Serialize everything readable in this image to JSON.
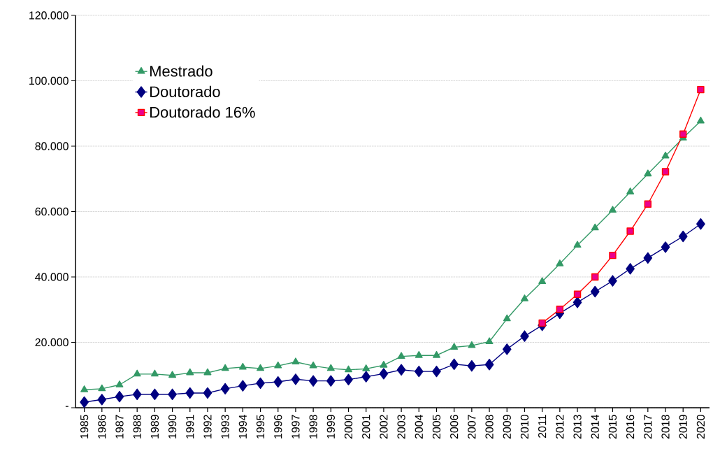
{
  "chart_data": {
    "type": "line",
    "categories": [
      "1985",
      "1986",
      "1987",
      "1988",
      "1989",
      "1990",
      "1991",
      "1992",
      "1993",
      "1994",
      "1995",
      "1996",
      "1997",
      "1998",
      "1999",
      "2000",
      "2001",
      "2002",
      "2003",
      "2004",
      "2005",
      "2006",
      "2007",
      "2008",
      "2009",
      "2010",
      "2011",
      "2012",
      "2013",
      "2014",
      "2015",
      "2016",
      "2017",
      "2018",
      "2019",
      "2020"
    ],
    "series": [
      {
        "name": "Mestrado",
        "color": "#339966",
        "marker": "triangle",
        "values": [
          5500,
          5800,
          7000,
          10300,
          10300,
          9900,
          10700,
          10700,
          12000,
          12400,
          12000,
          12800,
          14000,
          12800,
          12000,
          11600,
          11900,
          13000,
          15700,
          16000,
          16000,
          18500,
          19000,
          20200,
          27200,
          33300,
          38600,
          44000,
          49700,
          55000,
          60400,
          66000,
          71500,
          77000,
          82500,
          87700
        ]
      },
      {
        "name": "Doutorado",
        "color": "#000080",
        "marker": "diamond",
        "values": [
          1700,
          2500,
          3400,
          4100,
          4100,
          4100,
          4500,
          4500,
          5800,
          6700,
          7500,
          7900,
          8700,
          8200,
          8200,
          8600,
          9500,
          10400,
          11600,
          11100,
          11100,
          13300,
          12800,
          13200,
          17900,
          21900,
          25200,
          28900,
          32200,
          35500,
          38800,
          42500,
          45800,
          49100,
          52400,
          56200
        ]
      },
      {
        "name": "Doutorado 16%",
        "color": "#ff0000",
        "marker": "square",
        "values": [
          null,
          null,
          null,
          null,
          null,
          null,
          null,
          null,
          null,
          null,
          null,
          null,
          null,
          null,
          null,
          null,
          null,
          null,
          null,
          null,
          null,
          null,
          null,
          null,
          null,
          null,
          25900,
          30100,
          34700,
          40000,
          46600,
          54000,
          62300,
          72200,
          83700,
          97300
        ]
      }
    ],
    "ylim": [
      0,
      120000
    ],
    "yticks": [
      {
        "value": 0,
        "label": "-"
      },
      {
        "value": 20000,
        "label": "20.000"
      },
      {
        "value": 40000,
        "label": "40.000"
      },
      {
        "value": 60000,
        "label": "60.000"
      },
      {
        "value": 80000,
        "label": "80.000"
      },
      {
        "value": 100000,
        "label": "100.000"
      },
      {
        "value": 120000,
        "label": "120.000"
      }
    ],
    "grid": "y",
    "legend": "top left",
    "line_style": "solid"
  }
}
